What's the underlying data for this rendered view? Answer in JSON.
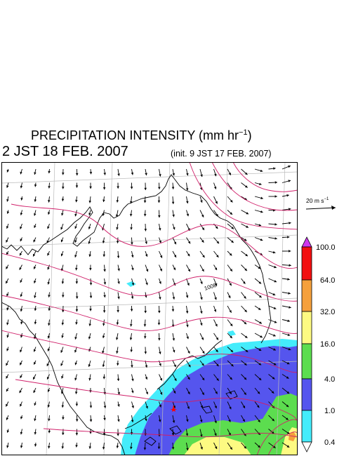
{
  "header": {
    "title_main": "PRECIPITATION INTENSITY (mm hr",
    "title_exp": "−1",
    "title_end": ")",
    "valid_time": "2 JST 18 FEB. 2007",
    "init_time": "(init. 9 JST 17 FEB. 2007)"
  },
  "wind_scale": {
    "label_main": "20 m s",
    "label_exp": "−1"
  },
  "map": {
    "contour_label": "1008",
    "marker_color": "#ff0000",
    "isobar_color": "#d0206a"
  },
  "colorbar": {
    "ticks": [
      "0.4",
      "1.0",
      "4.0",
      "16.0",
      "32.0",
      "64.0",
      "100.0"
    ],
    "colors": [
      "#44ecfb",
      "#5555ee",
      "#5cdd4f",
      "#fdfa82",
      "#f5a03c",
      "#f20f10"
    ],
    "under_color": "#ffffff",
    "over_color": "#cf37ee"
  }
}
